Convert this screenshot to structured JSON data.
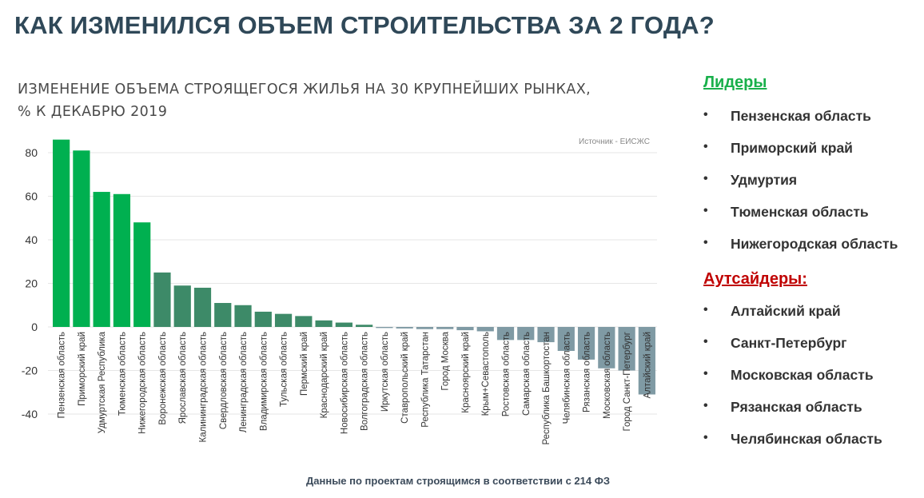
{
  "page": {
    "title": "КАК ИЗМЕНИЛСЯ ОБЪЕМ СТРОИТЕЛЬСТВА ЗА 2 ГОДА?",
    "footnote": "Данные по проектам строящимся в соответствии с 214 ФЗ"
  },
  "chart_data": {
    "type": "bar",
    "title_line1": "ИЗМЕНЕНИЕ ОБЪЕМА СТРОЯЩЕГОСЯ ЖИЛЬЯ НА 30 КРУПНЕЙШИХ РЫНКАХ,",
    "title_line2": "% К ДЕКАБРЮ 2019",
    "source": "Источник - ЕИСЖС",
    "xlabel": "",
    "ylabel": "",
    "ylim": [
      -40,
      90
    ],
    "yticks": [
      80,
      60,
      40,
      20,
      0,
      -20,
      -40
    ],
    "grid": true,
    "categories": [
      "Пензенская область",
      "Приморский край",
      "Удмуртская Республика",
      "Тюменская область",
      "Нижегородская область",
      "Воронежская область",
      "Ярославская область",
      "Калининградская область",
      "Свердловская область",
      "Ленинградская область",
      "Владимирская область",
      "Тульская область",
      "Пермский край",
      "Краснодарский край",
      "Новосибирская область",
      "Волгоградская область",
      "Иркутская область",
      "Ставропольский край",
      "Республика Татарстан",
      "Город Москва",
      "Красноярский край",
      "Крым+Севастополь",
      "Ростовская область",
      "Самарская область",
      "Республика Башкортостан",
      "Челябинская область",
      "Рязанская область",
      "Московская область",
      "Город Санкт-Петербург",
      "Алтайский край"
    ],
    "values": [
      86,
      81,
      62,
      61,
      48,
      25,
      19,
      18,
      11,
      10,
      7,
      6,
      5,
      3,
      2,
      1,
      -0.5,
      -0.7,
      -1,
      -1,
      -1.5,
      -2,
      -6,
      -6,
      -7,
      -11,
      -15,
      -19,
      -20,
      -31
    ],
    "colors": {
      "leaders": "#00b050",
      "growth": "#3d8a68",
      "decline": "#7f9aa4",
      "grid": "#e6e6e6",
      "tick": "#333333"
    }
  },
  "sidebar": {
    "leaders_title": "Лидеры",
    "leaders": [
      "Пензенская область",
      "Приморский край",
      "Удмуртия",
      "Тюменская область",
      "Нижегородская область"
    ],
    "outsiders_title": "Аутсайдеры:",
    "outsiders": [
      "Алтайский край",
      "Санкт-Петербург",
      "Московская область",
      "Рязанская область",
      "Челябинская область"
    ],
    "bullet": "•",
    "colors": {
      "leaders": "#19b04b",
      "outsiders": "#c00000"
    }
  }
}
